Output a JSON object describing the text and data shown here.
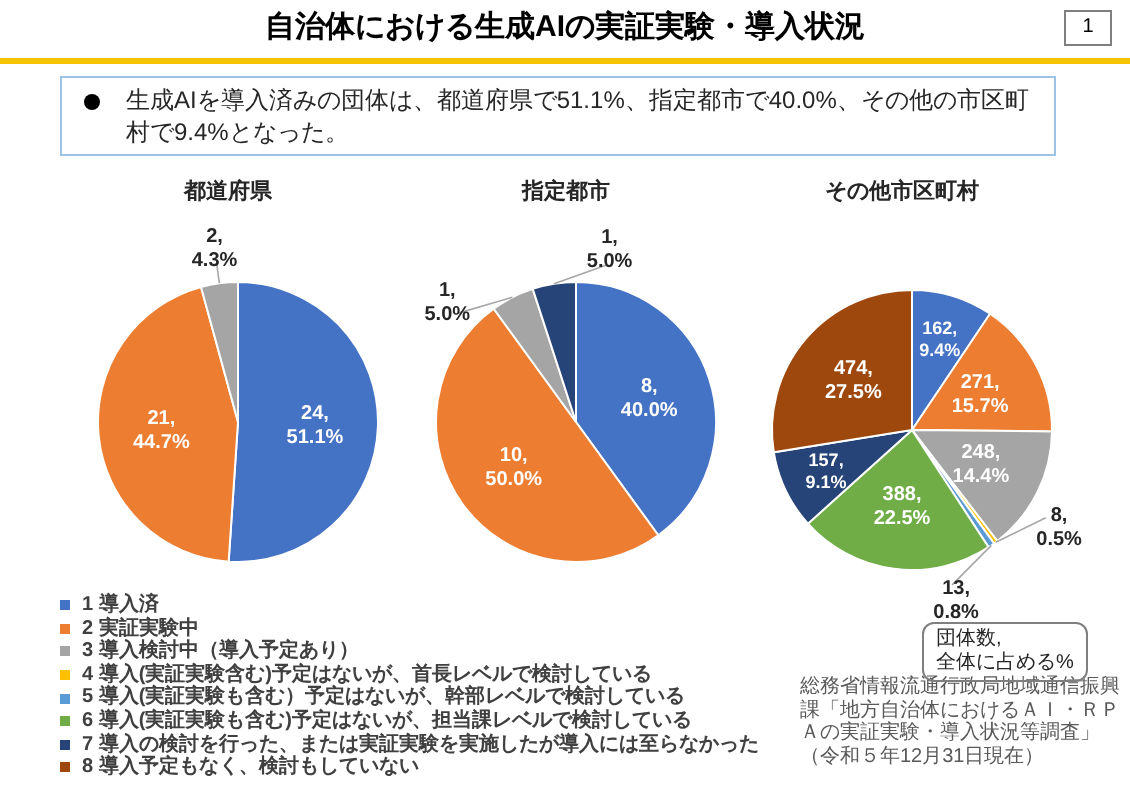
{
  "chart_data": [
    {
      "type": "other",
      "title": "自治体における生成AIの実証実験・導入状況",
      "subtitle": "生成AIを導入済みの団体は、都道府県で51.1%、指定都市で40.0%、その他の市区町村で9.4%となった。",
      "annotations": [
        "1",
        "総務省情報流通行政局地域通信振興課「地方自治体におけるＡＩ・ＲＰＡの実証実験・導入状況等調査」（令和５年12月31日現在）"
      ]
    },
    {
      "type": "pie",
      "title": "都道府県",
      "categories": [
        null,
        null,
        null
      ],
      "values": [
        24,
        21,
        2
      ],
      "colors": [
        "#4472c4",
        "#ed7d31",
        "#a5a5a5"
      ],
      "value_labels": [
        "24,\n51.1%",
        "21,\n44.7%",
        "2,\n4.3%"
      ]
    },
    {
      "type": "pie",
      "title": "指定都市",
      "categories": [
        null,
        null,
        null,
        null
      ],
      "values": [
        8,
        10,
        1,
        1
      ],
      "colors": [
        "#4472c4",
        "#ed7d31",
        "#a5a5a5",
        "#264478"
      ],
      "value_labels": [
        "8,\n40.0%",
        "10,\n50.0%",
        "1,\n5.0%",
        "1,\n5.0%"
      ]
    },
    {
      "type": "pie",
      "title": "その他市区町村",
      "categories": [
        "1 導入済",
        "2 実証実験中",
        "3 導入検討中（導入予定あり）",
        "4 導入(実証実験含む)予定はないが、首長レベルで検討している",
        "5 導入(実証実験も含む）予定はないが、幹部レベルで検討している",
        "6 導入(実証実験も含む)予定はないが、担当課レベルで検討している",
        "7 導入の検討を行った、または実証実験を実施したが導入には至らなかった",
        "8 導入予定もなく、検討もしていない"
      ],
      "values": [
        162,
        271,
        248,
        8,
        13,
        388,
        157,
        474
      ],
      "colors": [
        "#4472c4",
        "#ed7d31",
        "#a5a5a5",
        "#ffc000",
        "#5b9bd5",
        "#70ad47",
        "#264478",
        "#9e480e"
      ],
      "value_labels": [
        "162,\n9.4%",
        "271,\n15.7%",
        "248,\n14.4%",
        "8,\n0.5%",
        "13,\n0.8%",
        "388,\n22.5%",
        "157,\n9.1%",
        "474,\n27.5%"
      ],
      "legend": "bottom left",
      "annotations": [
        "団体数,\n全体に占める%"
      ]
    }
  ]
}
